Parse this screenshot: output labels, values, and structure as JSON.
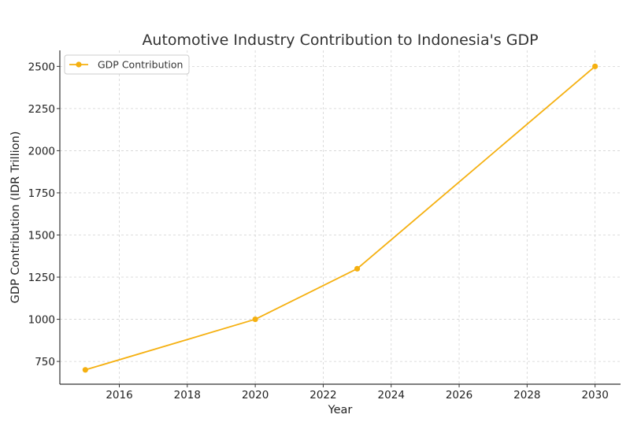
{
  "chart_data": {
    "type": "line",
    "title": "Automotive Industry Contribution to Indonesia's GDP",
    "xlabel": "Year",
    "ylabel": "GDP Contribution (IDR Trillion)",
    "x": [
      2015,
      2020,
      2023,
      2030
    ],
    "series": [
      {
        "name": "GDP Contribution",
        "values": [
          700,
          1000,
          1300,
          2500
        ],
        "color": "#f5b010"
      }
    ],
    "xlim": [
      2014.25,
      2030.75
    ],
    "ylim": [
      615,
      2595
    ],
    "xticks": [
      2016,
      2018,
      2020,
      2022,
      2024,
      2026,
      2028,
      2030
    ],
    "yticks": [
      750,
      1000,
      1250,
      1500,
      1750,
      2000,
      2250,
      2500
    ],
    "grid": true,
    "legend_position": "top-left"
  }
}
